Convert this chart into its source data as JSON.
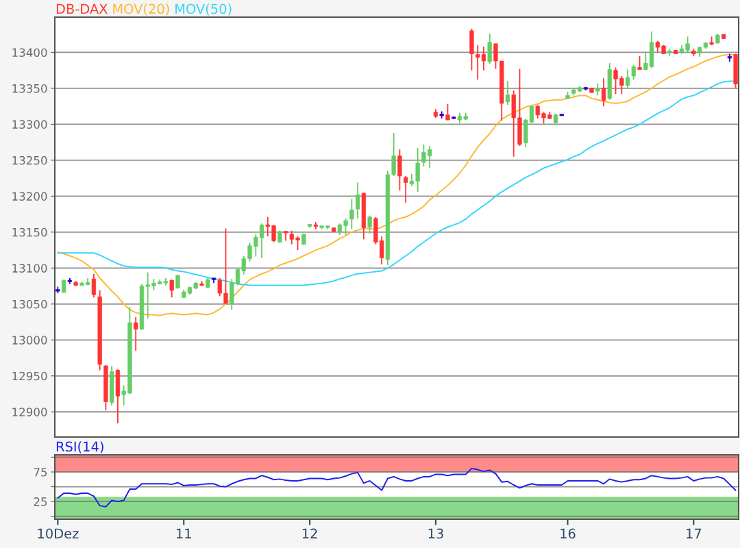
{
  "chart_data": [
    {
      "type": "candlestick",
      "categories": [
        null,
        null,
        null,
        null,
        null,
        null,
        null,
        null,
        null,
        null,
        null,
        null,
        null,
        null,
        null,
        null,
        null,
        null,
        null,
        null,
        null,
        null,
        null,
        null,
        null,
        null,
        null,
        null,
        null,
        null,
        null,
        null,
        null,
        null,
        null,
        null,
        null,
        null,
        null,
        null,
        null,
        null,
        null,
        null,
        null,
        null,
        null,
        null,
        null,
        null,
        null,
        null,
        null,
        null,
        null,
        null,
        null,
        null,
        null,
        null,
        null,
        null,
        null,
        null,
        null,
        null,
        null,
        null,
        null,
        null,
        null,
        null,
        null,
        null,
        null,
        null,
        null,
        null,
        null,
        null,
        null,
        null,
        null,
        null,
        null,
        null,
        null,
        null,
        null,
        null,
        null,
        null,
        null,
        null,
        null,
        null,
        null,
        null,
        null,
        null,
        null,
        null,
        null,
        null,
        null,
        null,
        null,
        null,
        null,
        null,
        null,
        null,
        null,
        null
      ],
      "series": [
        {
          "name": "DB-DAX",
          "type": "candlestick",
          "color": "#ff3b33",
          "colors": [
            "#3300cc",
            "#66cc66",
            "#3300cc",
            "#ff3333",
            "#66cc66",
            "#66cc66",
            "#ff3333",
            "#ff3333",
            "#ff3333",
            "#66cc66",
            "#ff3333",
            "#66cc66",
            "#66cc66",
            "#ff3333",
            "#66cc66",
            "#66cc66",
            "#66cc66",
            "#66cc66",
            "#66cc66",
            "#ff3333",
            "#66cc66",
            "#66cc66",
            "#66cc66",
            "#66cc66",
            "#ff3333",
            "#66cc66",
            "#3300cc",
            "#ff3333",
            "#ff3333",
            "#66cc66",
            "#66cc66",
            "#66cc66",
            "#66cc66",
            "#66cc66",
            "#66cc66",
            "#ff3333",
            "#ff3333",
            "#66cc66",
            "#ff3333",
            "#ff3333",
            "#ff3333",
            "#66cc66",
            "#66cc66",
            "#ff3333",
            "#66cc66",
            "#66cc66",
            "#ff3333",
            "#66cc66",
            "#66cc66",
            "#66cc66",
            "#66cc66",
            "#ff3333",
            "#66cc66",
            "#ff3333",
            "#ff3333",
            "#66cc66",
            "#66cc66",
            "#ff3333",
            "#ff3333",
            "#66cc66",
            "#66cc66",
            "#66cc66",
            "#66cc66",
            "#ff3333",
            "#3300cc",
            "#ff3333",
            "#3300cc",
            "#66cc66",
            "#66cc66",
            "#ff3333",
            "#ff3333",
            "#ff3333",
            "#66cc66",
            "#ff3333",
            "#ff3333",
            "#66cc66",
            "#ff3333",
            "#ff3333",
            "#66cc66",
            "#66cc66",
            "#ff3333",
            "#ff3333",
            "#ff3333",
            "#66cc66",
            "#3300cc",
            "#66cc66",
            "#66cc66",
            "#66cc66",
            "#3300cc",
            "#ff3333",
            "#66cc66",
            "#ff3333",
            "#66cc66",
            "#ff3333",
            "#ff3333",
            "#66cc66",
            "#66cc66",
            "#ff3333",
            "#66cc66",
            "#66cc66",
            "#ff3333",
            "#ff3333",
            "#66cc66",
            "#ff3333",
            "#66cc66",
            "#66cc66",
            "#ff3333",
            "#66cc66",
            "#66cc66",
            "#ff3333",
            "#66cc66",
            "#ff3333",
            "#3300cc",
            "#ff3333"
          ],
          "ohlc": [
            [
              13069,
              13074,
              13065,
              13069
            ],
            [
              13066,
              13084,
              13066,
              13083
            ],
            [
              13082,
              13086,
              13078,
              13082
            ],
            [
              13080,
              13082,
              13075,
              13076
            ],
            [
              13076,
              13081,
              13075,
              13079
            ],
            [
              13077,
              13086,
              13076,
              13080
            ],
            [
              13085,
              13092,
              13059,
              13063
            ],
            [
              13060,
              13069,
              12958,
              12966
            ],
            [
              12964,
              12965,
              12902,
              12914
            ],
            [
              12913,
              12964,
              12909,
              12956
            ],
            [
              12958,
              12959,
              12884,
              12922
            ],
            [
              12924,
              12937,
              12909,
              12929
            ],
            [
              12926,
              13046,
              12925,
              13024
            ],
            [
              13024,
              13032,
              12985,
              13015
            ],
            [
              13015,
              13078,
              13014,
              13075
            ],
            [
              13075,
              13094,
              13030,
              13076
            ],
            [
              13075,
              13085,
              13069,
              13079
            ],
            [
              13078,
              13084,
              13077,
              13081
            ],
            [
              13080,
              13086,
              13076,
              13081
            ],
            [
              13083,
              13084,
              13059,
              13069
            ],
            [
              13072,
              13090,
              13072,
              13090
            ],
            [
              13059,
              13070,
              13059,
              13067
            ],
            [
              13065,
              13074,
              13063,
              13073
            ],
            [
              13072,
              13080,
              13071,
              13079
            ],
            [
              13078,
              13082,
              13075,
              13076
            ],
            [
              13073,
              13086,
              13072,
              13084
            ],
            [
              13085,
              13085,
              13079,
              13085
            ],
            [
              13083,
              13086,
              13061,
              13065
            ],
            [
              13065,
              13155,
              13050,
              13051
            ],
            [
              13051,
              13085,
              13042,
              13080
            ],
            [
              13078,
              13100,
              13076,
              13098
            ],
            [
              13096,
              13117,
              13091,
              13113
            ],
            [
              13113,
              13135,
              13109,
              13131
            ],
            [
              13130,
              13147,
              13116,
              13143
            ],
            [
              13142,
              13162,
              13114,
              13160
            ],
            [
              13160,
              13171,
              13144,
              13158
            ],
            [
              13159,
              13160,
              13136,
              13138
            ],
            [
              13136,
              13152,
              13135,
              13151
            ],
            [
              13151,
              13151,
              13138,
              13149
            ],
            [
              13147,
              13152,
              13133,
              13140
            ],
            [
              13142,
              13144,
              13125,
              13139
            ],
            [
              13133,
              13148,
              13132,
              13147
            ],
            [
              13158,
              13161,
              13156,
              13161
            ],
            [
              13160,
              13164,
              13154,
              13158
            ],
            [
              13157,
              13159,
              13154,
              13158
            ],
            [
              13157,
              13159,
              13154,
              13158
            ],
            [
              13156,
              13156,
              13150,
              13151
            ],
            [
              13151,
              13162,
              13146,
              13160
            ],
            [
              13159,
              13169,
              13146,
              13166
            ],
            [
              13168,
              13196,
              13154,
              13181
            ],
            [
              13182,
              13219,
              13169,
              13202
            ],
            [
              13204,
              13205,
              13140,
              13156
            ],
            [
              13157,
              13173,
              13148,
              13171
            ],
            [
              13169,
              13171,
              13133,
              13136
            ],
            [
              13138,
              13144,
              13105,
              13114
            ],
            [
              13112,
              13235,
              13104,
              13230
            ],
            [
              13230,
              13288,
              13228,
              13256
            ],
            [
              13256,
              13265,
              13208,
              13228
            ],
            [
              13226,
              13228,
              13191,
              13219
            ],
            [
              13217,
              13231,
              13214,
              13221
            ],
            [
              13221,
              13267,
              13206,
              13246
            ],
            [
              13247,
              13272,
              13241,
              13261
            ],
            [
              13256,
              13270,
              13239,
              13265
            ],
            [
              13317,
              13321,
              13309,
              13311
            ],
            [
              13313,
              13318,
              13308,
              13313
            ],
            [
              13313,
              13328,
              13306,
              13306
            ],
            [
              13309,
              13311,
              13307,
              13309
            ],
            [
              13306,
              13316,
              13301,
              13311
            ],
            [
              13307,
              13316,
              13306,
              13311
            ],
            [
              13430,
              13433,
              13375,
              13398
            ],
            [
              13397,
              13410,
              13362,
              13393
            ],
            [
              13397,
              13408,
              13375,
              13388
            ],
            [
              13387,
              13426,
              13384,
              13414
            ],
            [
              13412,
              13412,
              13377,
              13388
            ],
            [
              13388,
              13388,
              13305,
              13329
            ],
            [
              13331,
              13360,
              13327,
              13341
            ],
            [
              13341,
              13347,
              13255,
              13309
            ],
            [
              13309,
              13377,
              13270,
              13272
            ],
            [
              13274,
              13307,
              13268,
              13306
            ],
            [
              13303,
              13326,
              13301,
              13325
            ],
            [
              13325,
              13327,
              13308,
              13313
            ],
            [
              13315,
              13317,
              13301,
              13309
            ],
            [
              13313,
              13317,
              13307,
              13308
            ],
            [
              13302,
              13315,
              13301,
              13313
            ],
            [
              13313,
              13313,
              13313,
              13313
            ],
            [
              13336,
              13345,
              13336,
              13340
            ],
            [
              13343,
              13351,
              13340,
              13348
            ],
            [
              13346,
              13353,
              13345,
              13351
            ],
            [
              13350,
              13352,
              13347,
              13350
            ],
            [
              13350,
              13350,
              13344,
              13344
            ],
            [
              13346,
              13357,
              13340,
              13349
            ],
            [
              13350,
              13364,
              13325,
              13333
            ],
            [
              13336,
              13385,
              13334,
              13376
            ],
            [
              13375,
              13379,
              13342,
              13363
            ],
            [
              13364,
              13367,
              13342,
              13354
            ],
            [
              13354,
              13376,
              13350,
              13365
            ],
            [
              13367,
              13382,
              13362,
              13380
            ],
            [
              13379,
              13395,
              13376,
              13376
            ],
            [
              13376,
              13399,
              13375,
              13385
            ],
            [
              13380,
              13429,
              13378,
              13414
            ],
            [
              13414,
              13416,
              13400,
              13407
            ],
            [
              13409,
              13410,
              13398,
              13398
            ],
            [
              13399,
              13405,
              13395,
              13402
            ],
            [
              13403,
              13403,
              13398,
              13398
            ],
            [
              13399,
              13410,
              13398,
              13405
            ],
            [
              13403,
              13422,
              13400,
              13412
            ],
            [
              13402,
              13405,
              13395,
              13398
            ],
            [
              13399,
              13408,
              13394,
              13407
            ],
            [
              13407,
              13414,
              13405,
              13413
            ],
            [
              13413,
              13422,
              13410,
              13412
            ],
            [
              13413,
              13426,
              13412,
              13424
            ],
            [
              13425,
              13425,
              13419,
              13419
            ],
            [
              13393,
              13398,
              13387,
              13393
            ],
            [
              13397,
              13398,
              13351,
              13356
            ]
          ]
        },
        {
          "name": "MOV(20)",
          "type": "line",
          "color": "#ffb732",
          "values": [
            13122,
            13120,
            13117,
            13114,
            13110,
            13104,
            13098,
            13086,
            13077,
            13068,
            13060,
            13050,
            13042,
            13038,
            13036,
            13035,
            13035,
            13034,
            13036,
            13037,
            13036,
            13035,
            13036,
            13037,
            13036,
            13035,
            13038,
            13043,
            13050,
            13058,
            13067,
            13076,
            13084,
            13088,
            13092,
            13095,
            13099,
            13104,
            13107,
            13110,
            13113,
            13117,
            13121,
            13125,
            13128,
            13131,
            13136,
            13141,
            13145,
            13150,
            13153,
            13155,
            13155,
            13154,
            13157,
            13161,
            13166,
            13169,
            13171,
            13175,
            13180,
            13186,
            13195,
            13201,
            13208,
            13215,
            13223,
            13232,
            13243,
            13256,
            13268,
            13278,
            13287,
            13298,
            13307,
            13312,
            13316,
            13320,
            13324,
            13326,
            13328,
            13332,
            13333,
            13334,
            13334,
            13336,
            13338,
            13340,
            13340,
            13336,
            13334,
            13332,
            13330,
            13329,
            13330,
            13332,
            13337,
            13341,
            13345,
            13350,
            13356,
            13361,
            13366,
            13369,
            13373,
            13377,
            13380,
            13384,
            13388,
            13391,
            13394,
            13396,
            13397,
            13396
          ]
        },
        {
          "name": "MOV(50)",
          "type": "line",
          "color": "#38d4fa",
          "values": [
            13121,
            13121,
            13121,
            13121,
            13121,
            13121,
            13121,
            13118,
            13114,
            13110,
            13106,
            13103,
            13102,
            13101,
            13101,
            13101,
            13101,
            13101,
            13100,
            13098,
            13096,
            13095,
            13093,
            13091,
            13089,
            13087,
            13085,
            13084,
            13082,
            13080,
            13078,
            13077,
            13076,
            13076,
            13076,
            13076,
            13076,
            13076,
            13076,
            13076,
            13076,
            13076,
            13077,
            13078,
            13079,
            13080,
            13082,
            13085,
            13087,
            13090,
            13092,
            13093,
            13094,
            13095,
            13096,
            13100,
            13105,
            13111,
            13117,
            13123,
            13130,
            13136,
            13142,
            13148,
            13153,
            13157,
            13160,
            13163,
            13168,
            13175,
            13181,
            13187,
            13193,
            13200,
            13206,
            13211,
            13216,
            13221,
            13226,
            13230,
            13234,
            13239,
            13242,
            13245,
            13248,
            13251,
            13255,
            13258,
            13264,
            13269,
            13273,
            13277,
            13281,
            13285,
            13289,
            13293,
            13296,
            13300,
            13305,
            13310,
            13315,
            13319,
            13323,
            13329,
            13335,
            13338,
            13340,
            13344,
            13348,
            13352,
            13356,
            13359,
            13360,
            13360
          ]
        }
      ],
      "ylim": [
        12865,
        13449
      ],
      "yticks": [
        12900,
        12950,
        13000,
        13050,
        13100,
        13150,
        13200,
        13250,
        13300,
        13350,
        13400
      ],
      "grid": "y",
      "legend": "top left"
    },
    {
      "type": "line",
      "categories": [
        "10Dez",
        null,
        null,
        null,
        null,
        null,
        null,
        null,
        null,
        null,
        null,
        null,
        null,
        null,
        null,
        null,
        null,
        null,
        null,
        null,
        null,
        "11",
        null,
        null,
        null,
        null,
        null,
        null,
        null,
        null,
        null,
        null,
        null,
        null,
        null,
        null,
        null,
        null,
        null,
        null,
        null,
        null,
        "12",
        null,
        null,
        null,
        null,
        null,
        null,
        null,
        null,
        null,
        null,
        null,
        null,
        null,
        null,
        null,
        null,
        null,
        null,
        null,
        null,
        "13",
        null,
        null,
        null,
        null,
        null,
        null,
        null,
        null,
        null,
        null,
        null,
        null,
        null,
        null,
        null,
        null,
        null,
        null,
        null,
        null,
        null,
        "16",
        null,
        null,
        null,
        null,
        null,
        null,
        null,
        null,
        null,
        null,
        null,
        null,
        null,
        null,
        null,
        null,
        null,
        null,
        null,
        null,
        "17",
        null,
        null,
        null,
        null,
        null,
        null,
        null
      ],
      "series": [
        {
          "name": "RSI(14)",
          "color": "#1f1fee",
          "values": [
            31,
            39,
            39,
            37,
            39,
            39,
            34,
            18,
            16,
            27,
            25,
            27,
            46,
            46,
            55,
            55,
            55,
            55,
            55,
            54,
            57,
            52,
            53,
            53,
            54,
            55,
            55,
            51,
            50,
            55,
            59,
            62,
            64,
            64,
            69,
            66,
            62,
            63,
            61,
            60,
            60,
            62,
            64,
            64,
            64,
            62,
            64,
            65,
            68,
            72,
            74,
            56,
            60,
            52,
            44,
            64,
            67,
            63,
            60,
            60,
            64,
            67,
            67,
            71,
            71,
            69,
            71,
            71,
            71,
            81,
            79,
            76,
            78,
            72,
            58,
            59,
            53,
            48,
            52,
            55,
            53,
            53,
            53,
            53,
            53,
            60,
            60,
            60,
            60,
            60,
            60,
            55,
            63,
            60,
            58,
            60,
            62,
            62,
            64,
            69,
            67,
            65,
            64,
            64,
            65,
            67,
            60,
            63,
            65,
            65,
            67,
            64,
            54,
            44
          ]
        }
      ],
      "ylim": [
        -5,
        104
      ],
      "yticks": [
        {
          "value": 0,
          "label": null
        },
        25,
        {
          "value": 50,
          "label": null
        },
        75,
        {
          "value": 100,
          "label": null
        }
      ],
      "bands": [
        {
          "axis": "y",
          "from": 75,
          "to": 104,
          "color": "#ff8a8a"
        },
        {
          "axis": "y",
          "from": -5,
          "to": 33,
          "color": "#8ad88a"
        }
      ],
      "grid": "y",
      "legend": "top left"
    }
  ]
}
